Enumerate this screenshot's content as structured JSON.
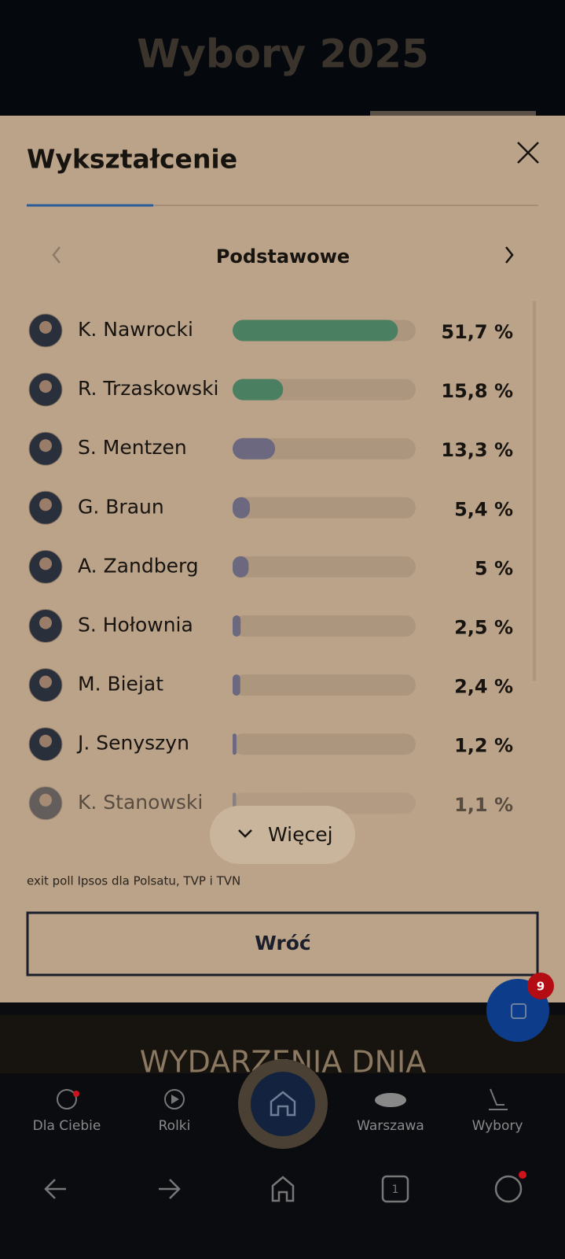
{
  "header": {
    "title": "Wybory 2025"
  },
  "panel": {
    "title": "Wykształcenie",
    "tab": "Podstawowe",
    "candidates": [
      {
        "name": "K. Nawrocki",
        "value": 51.7,
        "value_label": "51,7 %",
        "color": "#4a7f62"
      },
      {
        "name": "R. Trzaskowski",
        "value": 15.8,
        "value_label": "15,8 %",
        "color": "#4a7f62"
      },
      {
        "name": "S. Mentzen",
        "value": 13.3,
        "value_label": "13,3 %",
        "color": "#6b6880"
      },
      {
        "name": "G. Braun",
        "value": 5.4,
        "value_label": "5,4 %",
        "color": "#6b6880"
      },
      {
        "name": "A. Zandberg",
        "value": 5,
        "value_label": "5 %",
        "color": "#6b6880"
      },
      {
        "name": "S. Hołownia",
        "value": 2.5,
        "value_label": "2,5 %",
        "color": "#6b6880"
      },
      {
        "name": "M. Biejat",
        "value": 2.4,
        "value_label": "2,4 %",
        "color": "#6b6880"
      },
      {
        "name": "J. Senyszyn",
        "value": 1.2,
        "value_label": "1,2 %",
        "color": "#6b6880"
      },
      {
        "name": "K. Stanowski",
        "value": 1.1,
        "value_label": "1,1 %",
        "color": "#6b6880"
      }
    ],
    "more": "Więcej",
    "source": "exit poll Ipsos dla Polsatu, TVP i TVN",
    "back": "Wróć"
  },
  "badge": "9",
  "section": "WYDARZENIA DNIA",
  "nav": [
    "Dla Ciebie",
    "Rolki",
    "Warszawa",
    "Wybory"
  ],
  "tabs_count": "1"
}
